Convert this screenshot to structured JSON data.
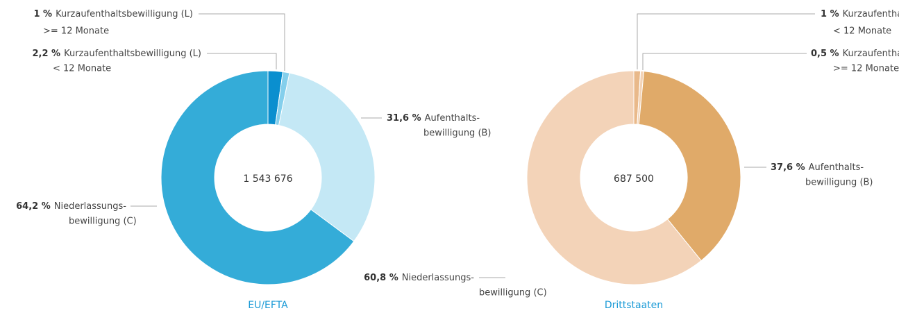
{
  "chart_data": [
    {
      "type": "pie",
      "title": "EU/EFTA",
      "center_label": "1 543 676",
      "total": 1543676,
      "categories": [
        [
          "Kurzaufenthaltsbewilligung (L)",
          "< 12 Monate"
        ],
        [
          "Kurzaufenthaltsbewilligung (L)",
          ">= 12 Monate"
        ],
        [
          "Aufenthalts-",
          "bewilligung (B)"
        ],
        [
          "Niederlassungs-",
          "bewilligung (C)"
        ]
      ],
      "values": [
        2.2,
        1,
        31.6,
        64.2
      ],
      "value_labels": [
        "2,2 %",
        "1 %",
        "31,6 %",
        "64,2 %"
      ],
      "colors": [
        "#0a8fcf",
        "#84cfec",
        "#c4e8f5",
        "#34acd8"
      ]
    },
    {
      "type": "pie",
      "title": "Drittstaaten",
      "center_label": "687 500",
      "total": 687500,
      "categories": [
        [
          "Kurzaufenthaltsbewilligung (L)",
          "< 12 Monate"
        ],
        [
          "Kurzaufenthaltsbewilligung (L)",
          ">= 12 Monate"
        ],
        [
          "Aufenthalts-",
          "bewilligung (B)"
        ],
        [
          "Niederlassungs-",
          "bewilligung (C)"
        ]
      ],
      "values": [
        1,
        0.5,
        37.6,
        60.8
      ],
      "value_labels": [
        "1 %",
        "0,5 %",
        "37,6 %",
        "60,8 %"
      ],
      "colors": [
        "#e9b98a",
        "#f3d3b6",
        "#e0aa69",
        "#f3d3b8"
      ]
    }
  ]
}
